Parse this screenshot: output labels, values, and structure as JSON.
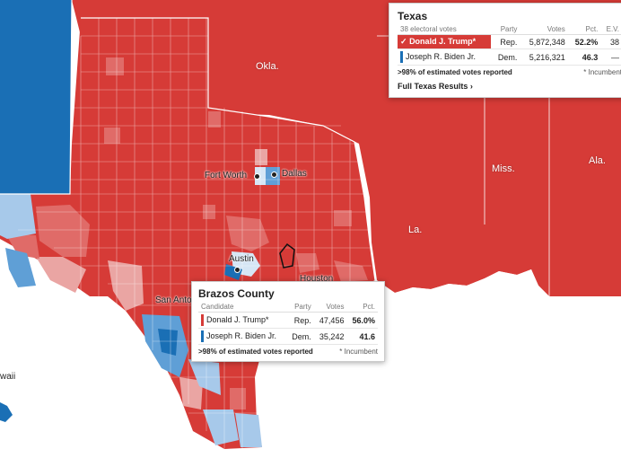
{
  "map": {
    "labels": {
      "okla": "Okla.",
      "miss": "Miss.",
      "ala": "Ala.",
      "la": "La.",
      "fort_worth": "Fort Worth",
      "dallas": "Dallas",
      "austin": "Austin",
      "san_antonio": "San Anto",
      "houston": "Houston",
      "hawaii": "waii"
    },
    "colors": {
      "rep_strong": "#d63b37",
      "rep_mid": "#e06b68",
      "rep_light": "#eaa5a3",
      "dem_strong": "#1a6fb5",
      "dem_mid": "#5f9fd6",
      "dem_light": "#a7c9ea"
    }
  },
  "state_panel": {
    "title": "Texas",
    "subhead": "38 electoral votes",
    "columns": [
      "Party",
      "Votes",
      "Pct.",
      "E.V."
    ],
    "rows": [
      {
        "check": "✓",
        "candidate": "Donald J. Trump*",
        "party": "Rep.",
        "votes": "5,872,348",
        "pct": "52.2%",
        "ev": "38",
        "color": "#d63b37"
      },
      {
        "check": "",
        "candidate": "Joseph R. Biden Jr.",
        "party": "Dem.",
        "votes": "5,216,321",
        "pct": "46.3",
        "ev": "—",
        "color": "#1a6fb5"
      }
    ],
    "reported": ">98% of estimated votes reported",
    "incumbent_note": "* Incumbent",
    "link": "Full Texas Results ›"
  },
  "county_panel": {
    "title": "Brazos County",
    "columns": [
      "Candidate",
      "Party",
      "Votes",
      "Pct."
    ],
    "rows": [
      {
        "candidate": "Donald J. Trump*",
        "party": "Rep.",
        "votes": "47,456",
        "pct": "56.0%",
        "color": "#d63b37"
      },
      {
        "candidate": "Joseph R. Biden Jr.",
        "party": "Dem.",
        "votes": "35,242",
        "pct": "41.6",
        "color": "#1a6fb5"
      }
    ],
    "reported": ">98% of estimated votes reported",
    "incumbent_note": "* Incumbent"
  }
}
